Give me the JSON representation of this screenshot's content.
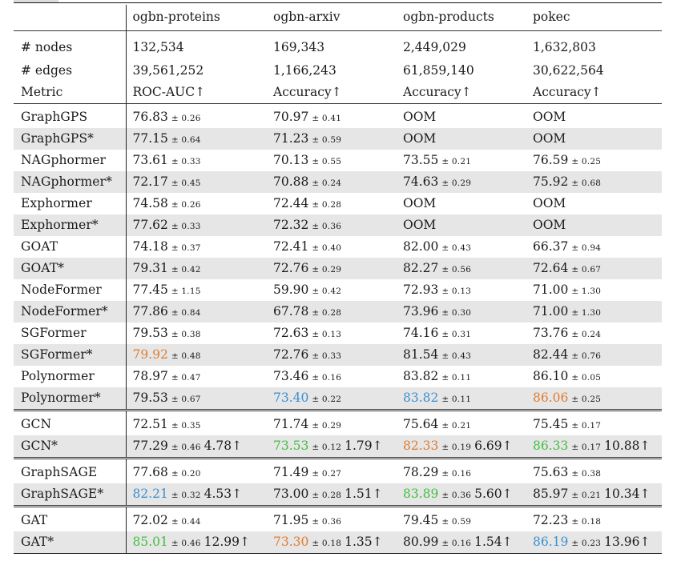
{
  "columns": [
    "",
    "ogbn-proteins",
    "ogbn-arxiv",
    "ogbn-products",
    "pokec"
  ],
  "stats": [
    {
      "label": "# nodes",
      "values": [
        "132,534",
        "169,343",
        "2,449,029",
        "1,632,803"
      ]
    },
    {
      "label": "# edges",
      "values": [
        "39,561,252",
        "1,166,243",
        "61,859,140",
        "30,622,564"
      ]
    },
    {
      "label": "Metric",
      "values": [
        "ROC-AUC↑",
        "Accuracy↑",
        "Accuracy↑",
        "Accuracy↑"
      ]
    }
  ],
  "colors": {
    "orange": "#e07b2e",
    "blue": "#3a8fd0",
    "green": "#3fbf3f",
    "shade": "#e6e6e6"
  },
  "groups": [
    {
      "rows": [
        {
          "model": "GraphGPS",
          "shaded": false,
          "cells": [
            {
              "v": "76.83",
              "s": "± 0.26"
            },
            {
              "v": "70.97",
              "s": "± 0.41"
            },
            {
              "v": "OOM",
              "s": ""
            },
            {
              "v": "OOM",
              "s": ""
            }
          ]
        },
        {
          "model": "GraphGPS*",
          "shaded": true,
          "cells": [
            {
              "v": "77.15",
              "s": "± 0.64"
            },
            {
              "v": "71.23",
              "s": "± 0.59"
            },
            {
              "v": "OOM",
              "s": ""
            },
            {
              "v": "OOM",
              "s": ""
            }
          ]
        },
        {
          "model": "NAGphormer",
          "shaded": false,
          "cells": [
            {
              "v": "73.61",
              "s": "± 0.33"
            },
            {
              "v": "70.13",
              "s": "± 0.55"
            },
            {
              "v": "73.55",
              "s": "± 0.21"
            },
            {
              "v": "76.59",
              "s": "± 0.25"
            }
          ]
        },
        {
          "model": "NAGphormer*",
          "shaded": true,
          "cells": [
            {
              "v": "72.17",
              "s": "± 0.45"
            },
            {
              "v": "70.88",
              "s": "± 0.24"
            },
            {
              "v": "74.63",
              "s": "± 0.29"
            },
            {
              "v": "75.92",
              "s": "± 0.68"
            }
          ]
        },
        {
          "model": "Exphormer",
          "shaded": false,
          "cells": [
            {
              "v": "74.58",
              "s": "± 0.26"
            },
            {
              "v": "72.44",
              "s": "± 0.28"
            },
            {
              "v": "OOM",
              "s": ""
            },
            {
              "v": "OOM",
              "s": ""
            }
          ]
        },
        {
          "model": "Exphormer*",
          "shaded": true,
          "cells": [
            {
              "v": "77.62",
              "s": "± 0.33"
            },
            {
              "v": "72.32",
              "s": "± 0.36"
            },
            {
              "v": "OOM",
              "s": ""
            },
            {
              "v": "OOM",
              "s": ""
            }
          ]
        },
        {
          "model": "GOAT",
          "shaded": false,
          "cells": [
            {
              "v": "74.18",
              "s": "± 0.37"
            },
            {
              "v": "72.41",
              "s": "± 0.40"
            },
            {
              "v": "82.00",
              "s": "± 0.43"
            },
            {
              "v": "66.37",
              "s": "± 0.94"
            }
          ]
        },
        {
          "model": "GOAT*",
          "shaded": true,
          "cells": [
            {
              "v": "79.31",
              "s": "± 0.42"
            },
            {
              "v": "72.76",
              "s": "± 0.29"
            },
            {
              "v": "82.27",
              "s": "± 0.56"
            },
            {
              "v": "72.64",
              "s": "± 0.67"
            }
          ]
        },
        {
          "model": "NodeFormer",
          "shaded": false,
          "cells": [
            {
              "v": "77.45",
              "s": "± 1.15"
            },
            {
              "v": "59.90",
              "s": "± 0.42"
            },
            {
              "v": "72.93",
              "s": "± 0.13"
            },
            {
              "v": "71.00",
              "s": "± 1.30"
            }
          ]
        },
        {
          "model": "NodeFormer*",
          "shaded": true,
          "cells": [
            {
              "v": "77.86",
              "s": "± 0.84"
            },
            {
              "v": "67.78",
              "s": "± 0.28"
            },
            {
              "v": "73.96",
              "s": "± 0.30"
            },
            {
              "v": "71.00",
              "s": "± 1.30"
            }
          ]
        },
        {
          "model": "SGFormer",
          "shaded": false,
          "cells": [
            {
              "v": "79.53",
              "s": "± 0.38"
            },
            {
              "v": "72.63",
              "s": "± 0.13"
            },
            {
              "v": "74.16",
              "s": "± 0.31"
            },
            {
              "v": "73.76",
              "s": "± 0.24"
            }
          ]
        },
        {
          "model": "SGFormer*",
          "shaded": true,
          "cells": [
            {
              "v": "79.92",
              "s": "± 0.48",
              "c": "orange"
            },
            {
              "v": "72.76",
              "s": "± 0.33"
            },
            {
              "v": "81.54",
              "s": "± 0.43"
            },
            {
              "v": "82.44",
              "s": "± 0.76"
            }
          ]
        },
        {
          "model": "Polynormer",
          "shaded": false,
          "cells": [
            {
              "v": "78.97",
              "s": "± 0.47"
            },
            {
              "v": "73.46",
              "s": "± 0.16"
            },
            {
              "v": "83.82",
              "s": "± 0.11"
            },
            {
              "v": "86.10",
              "s": "± 0.05"
            }
          ]
        },
        {
          "model": "Polynormer*",
          "shaded": true,
          "cells": [
            {
              "v": "79.53",
              "s": "± 0.67"
            },
            {
              "v": "73.40",
              "s": "± 0.22",
              "c": "blue"
            },
            {
              "v": "83.82",
              "s": "± 0.11",
              "c": "blue"
            },
            {
              "v": "86.06",
              "s": "± 0.25",
              "c": "orange"
            }
          ]
        }
      ]
    },
    {
      "rows": [
        {
          "model": "GCN",
          "shaded": false,
          "cells": [
            {
              "v": "72.51",
              "s": "± 0.35"
            },
            {
              "v": "71.74",
              "s": "± 0.29"
            },
            {
              "v": "75.64",
              "s": "± 0.21"
            },
            {
              "v": "75.45",
              "s": "± 0.17"
            }
          ]
        },
        {
          "model": "GCN*",
          "shaded": true,
          "cells": [
            {
              "v": "77.29",
              "s": "± 0.46",
              "i": "4.78↑"
            },
            {
              "v": "73.53",
              "s": "± 0.12",
              "i": "1.79↑",
              "c": "green"
            },
            {
              "v": "82.33",
              "s": "± 0.19",
              "i": "6.69↑",
              "c": "orange"
            },
            {
              "v": "86.33",
              "s": "± 0.17",
              "i": "10.88↑",
              "c": "green"
            }
          ]
        }
      ]
    },
    {
      "rows": [
        {
          "model": "GraphSAGE",
          "shaded": false,
          "cells": [
            {
              "v": "77.68",
              "s": "± 0.20"
            },
            {
              "v": "71.49",
              "s": "± 0.27"
            },
            {
              "v": "78.29",
              "s": "± 0.16"
            },
            {
              "v": "75.63",
              "s": "± 0.38"
            }
          ]
        },
        {
          "model": "GraphSAGE*",
          "shaded": true,
          "cells": [
            {
              "v": "82.21",
              "s": "± 0.32",
              "i": "4.53↑",
              "c": "blue"
            },
            {
              "v": "73.00",
              "s": "± 0.28",
              "i": "1.51↑"
            },
            {
              "v": "83.89",
              "s": "± 0.36",
              "i": "5.60↑",
              "c": "green"
            },
            {
              "v": "85.97",
              "s": "± 0.21",
              "i": "10.34↑"
            }
          ]
        }
      ]
    },
    {
      "rows": [
        {
          "model": "GAT",
          "shaded": false,
          "cells": [
            {
              "v": "72.02",
              "s": "± 0.44"
            },
            {
              "v": "71.95",
              "s": "± 0.36"
            },
            {
              "v": "79.45",
              "s": "± 0.59"
            },
            {
              "v": "72.23",
              "s": "± 0.18"
            }
          ]
        },
        {
          "model": "GAT*",
          "shaded": true,
          "cells": [
            {
              "v": "85.01",
              "s": "± 0.46",
              "i": "12.99↑",
              "c": "green"
            },
            {
              "v": "73.30",
              "s": "± 0.18",
              "i": "1.35↑",
              "c": "orange"
            },
            {
              "v": "80.99",
              "s": "± 0.16",
              "i": "1.54↑"
            },
            {
              "v": "86.19",
              "s": "± 0.23",
              "i": "13.96↑",
              "c": "blue"
            }
          ]
        }
      ]
    }
  ]
}
